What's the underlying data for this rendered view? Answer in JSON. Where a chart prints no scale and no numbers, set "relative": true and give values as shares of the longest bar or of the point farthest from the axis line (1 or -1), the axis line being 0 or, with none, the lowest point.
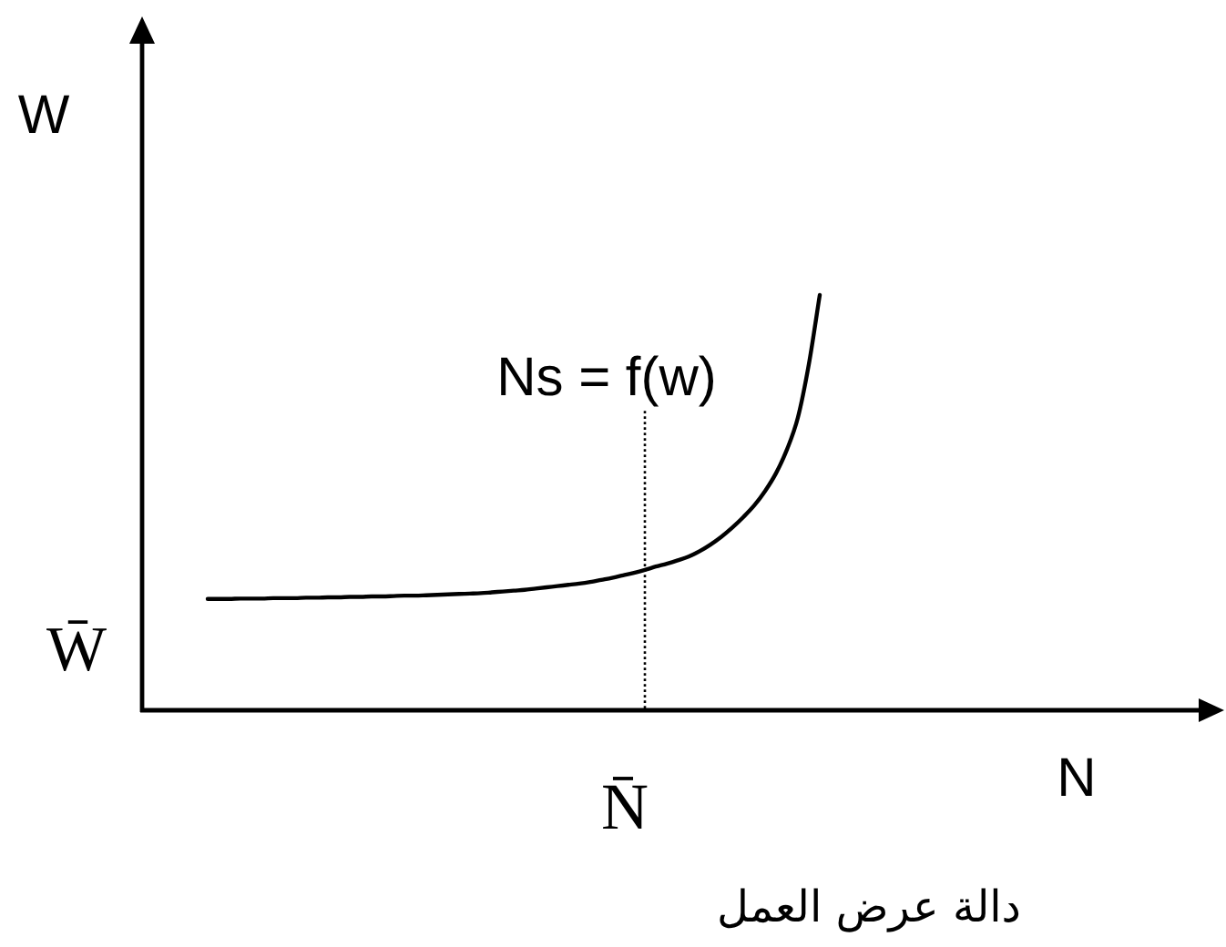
{
  "chart_data": {
    "type": "line",
    "relative": true,
    "xlabel": "N",
    "ylabel": "W",
    "marker": "none",
    "line_style": "solid",
    "categories": [
      null,
      null,
      null,
      null,
      null,
      null,
      null,
      null,
      null,
      null,
      null,
      null,
      null,
      null,
      null,
      null,
      null,
      null,
      null,
      null,
      null,
      null,
      null,
      null,
      null,
      null,
      null,
      null,
      null,
      null,
      null,
      null,
      null,
      null,
      null,
      null,
      null,
      null,
      null,
      null,
      null,
      null,
      null,
      null,
      null,
      null,
      null,
      null,
      null,
      null,
      null,
      null,
      null,
      null,
      null,
      null,
      null
    ],
    "series": [
      {
        "name": "Ns = f(w)",
        "color": "#000000",
        "values": [
          0.268,
          0.268,
          0.268,
          0.269,
          0.269,
          0.269,
          0.27,
          0.27,
          0.27,
          0.271,
          0.271,
          0.272,
          0.272,
          0.273,
          0.273,
          0.274,
          0.274,
          0.275,
          0.276,
          0.276,
          0.277,
          0.278,
          0.279,
          0.28,
          0.281,
          0.282,
          0.284,
          0.286,
          0.288,
          0.29,
          0.293,
          0.296,
          0.299,
          0.302,
          0.305,
          0.309,
          0.314,
          0.319,
          0.325,
          0.331,
          0.338,
          0.346,
          0.353,
          0.361,
          0.37,
          0.383,
          0.399,
          0.418,
          0.44,
          0.465,
          0.493,
          0.528,
          0.571,
          0.628,
          0.705,
          0.833,
          1
        ]
      }
    ],
    "annotations": [
      "W̄",
      "N̄",
      "دالة عرض العمل"
    ]
  }
}
